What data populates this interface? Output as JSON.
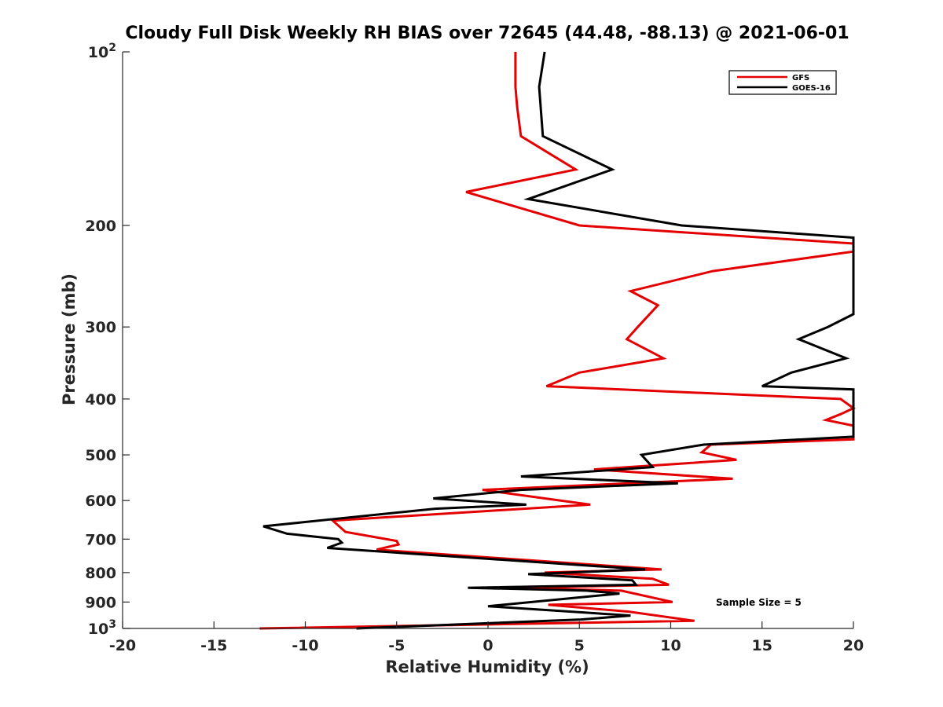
{
  "chart_data": {
    "type": "line",
    "title": "Cloudy Full Disk Weekly RH BIAS over 72645 (44.48, -88.13) @ 2021-06-01",
    "xlabel": "Relative Humidity (%)",
    "ylabel": "Pressure (mb)",
    "xlim": [
      -20,
      20
    ],
    "ylim": [
      100,
      1000
    ],
    "y_scale": "log",
    "y_reversed": true,
    "grid": false,
    "legend_position": "top-right",
    "note": "Sample Size = 5",
    "x_ticks": [
      -20,
      -15,
      -10,
      -5,
      0,
      5,
      10,
      15,
      20
    ],
    "x_tick_labels": [
      "-20",
      "-15",
      "-10",
      "-5",
      "0",
      "5",
      "10",
      "15",
      "20"
    ],
    "y_ticks": [
      {
        "value": 100,
        "base": "10",
        "exp": "2"
      },
      {
        "value": 200,
        "label": "200"
      },
      {
        "value": 300,
        "label": "300"
      },
      {
        "value": 400,
        "label": "400"
      },
      {
        "value": 500,
        "label": "500"
      },
      {
        "value": 600,
        "label": "600"
      },
      {
        "value": 700,
        "label": "700"
      },
      {
        "value": 800,
        "label": "800"
      },
      {
        "value": 900,
        "label": "900"
      },
      {
        "value": 1000,
        "base": "10",
        "exp": "3"
      }
    ],
    "series": [
      {
        "name": "GFS",
        "color": "#e50000",
        "points": [
          [
            1.5,
            100
          ],
          [
            1.5,
            115
          ],
          [
            1.6,
            125
          ],
          [
            1.8,
            140
          ],
          [
            4.8,
            160
          ],
          [
            -1.2,
            175
          ],
          [
            5.0,
            200
          ],
          [
            20,
            215
          ],
          [
            20,
            222
          ],
          [
            12.3,
            240
          ],
          [
            7.8,
            260
          ],
          [
            9.3,
            275
          ],
          [
            8.2,
            300
          ],
          [
            7.6,
            315
          ],
          [
            9.6,
            340
          ],
          [
            5.0,
            360
          ],
          [
            3.2,
            380
          ],
          [
            19.3,
            400
          ],
          [
            20,
            415
          ],
          [
            19.3,
            425
          ],
          [
            18.5,
            435
          ],
          [
            20,
            445
          ],
          [
            20,
            470
          ],
          [
            12.2,
            480
          ],
          [
            11.7,
            495
          ],
          [
            13.6,
            510
          ],
          [
            5.8,
            530
          ],
          [
            13.4,
            550
          ],
          [
            -0.3,
            575
          ],
          [
            5.6,
            610
          ],
          [
            -8.5,
            650
          ],
          [
            -7.8,
            680
          ],
          [
            -5.0,
            705
          ],
          [
            -4.9,
            715
          ],
          [
            -6.1,
            730
          ],
          [
            9.5,
            790
          ],
          [
            3.1,
            800
          ],
          [
            9.0,
            820
          ],
          [
            9.9,
            840
          ],
          [
            1.3,
            850
          ],
          [
            7.3,
            860
          ],
          [
            10.1,
            900
          ],
          [
            3.3,
            910
          ],
          [
            7.7,
            935
          ],
          [
            11.3,
            970
          ],
          [
            -12.5,
            1000
          ]
        ]
      },
      {
        "name": "GOES-16",
        "color": "#000000",
        "points": [
          [
            3.1,
            100
          ],
          [
            2.8,
            115
          ],
          [
            3.0,
            140
          ],
          [
            6.8,
            160
          ],
          [
            2.2,
            180
          ],
          [
            10.6,
            200
          ],
          [
            20,
            210
          ],
          [
            20,
            285
          ],
          [
            18.6,
            300
          ],
          [
            17.0,
            315
          ],
          [
            19.6,
            340
          ],
          [
            16.6,
            360
          ],
          [
            15.0,
            380
          ],
          [
            20,
            385
          ],
          [
            20,
            465
          ],
          [
            11.8,
            480
          ],
          [
            8.4,
            500
          ],
          [
            9.0,
            525
          ],
          [
            1.8,
            545
          ],
          [
            10.4,
            560
          ],
          [
            1.8,
            575
          ],
          [
            -3.0,
            595
          ],
          [
            2.1,
            610
          ],
          [
            -2.9,
            620
          ],
          [
            -12.3,
            665
          ],
          [
            -11.0,
            685
          ],
          [
            -8.2,
            700
          ],
          [
            -8.0,
            710
          ],
          [
            -8.8,
            725
          ],
          [
            8.6,
            790
          ],
          [
            2.2,
            805
          ],
          [
            7.9,
            825
          ],
          [
            8.1,
            840
          ],
          [
            -1.1,
            850
          ],
          [
            5.4,
            860
          ],
          [
            7.2,
            870
          ],
          [
            0.0,
            915
          ],
          [
            7.8,
            950
          ],
          [
            5.1,
            965
          ],
          [
            -7.2,
            1000
          ]
        ]
      }
    ]
  }
}
